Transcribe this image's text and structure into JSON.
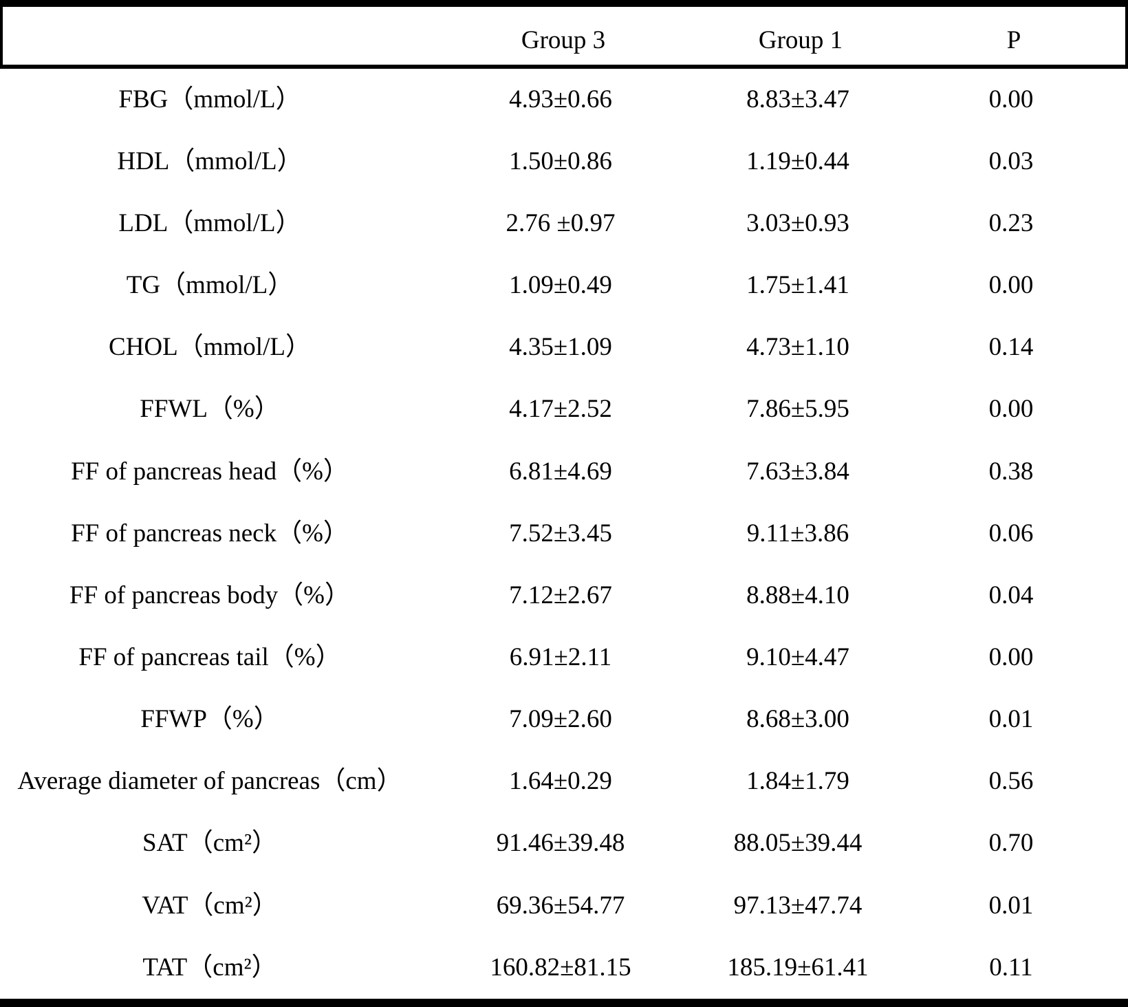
{
  "chart_data": {
    "type": "table",
    "columns": [
      "",
      "Group 3",
      "Group 1",
      "P"
    ],
    "rows": [
      [
        "FBG（mmol/L）",
        "4.93±0.66",
        "8.83±3.47",
        "0.00"
      ],
      [
        "HDL（mmol/L）",
        "1.50±0.86",
        "1.19±0.44",
        "0.03"
      ],
      [
        "LDL（mmol/L）",
        "2.76 ±0.97",
        "3.03±0.93",
        "0.23"
      ],
      [
        "TG（mmol/L）",
        "1.09±0.49",
        "1.75±1.41",
        "0.00"
      ],
      [
        "CHOL（mmol/L）",
        "4.35±1.09",
        "4.73±1.10",
        "0.14"
      ],
      [
        "FFWL（%）",
        "4.17±2.52",
        "7.86±5.95",
        "0.00"
      ],
      [
        "FF of pancreas head（%）",
        "6.81±4.69",
        "7.63±3.84",
        "0.38"
      ],
      [
        "FF of pancreas neck（%）",
        "7.52±3.45",
        "9.11±3.86",
        "0.06"
      ],
      [
        "FF of pancreas body（%）",
        "7.12±2.67",
        "8.88±4.10",
        "0.04"
      ],
      [
        "FF of pancreas tail（%）",
        "6.91±2.11",
        "9.10±4.47",
        "0.00"
      ],
      [
        "FFWP（%）",
        "7.09±2.60",
        "8.68±3.00",
        "0.01"
      ],
      [
        "Average diameter of pancreas（cm）",
        "1.64±0.29",
        "1.84±1.79",
        "0.56"
      ],
      [
        "SAT（cm²）",
        "91.46±39.48",
        "88.05±39.44",
        "0.70"
      ],
      [
        "VAT（cm²）",
        "69.36±54.77",
        "97.13±47.74",
        "0.01"
      ],
      [
        "TAT（cm²）",
        "160.82±81.15",
        "185.19±61.41",
        "0.11"
      ]
    ],
    "layout": {
      "grid": "off",
      "text_color": "#000000",
      "rule_color": "#000000",
      "background": "#ffffff"
    }
  }
}
